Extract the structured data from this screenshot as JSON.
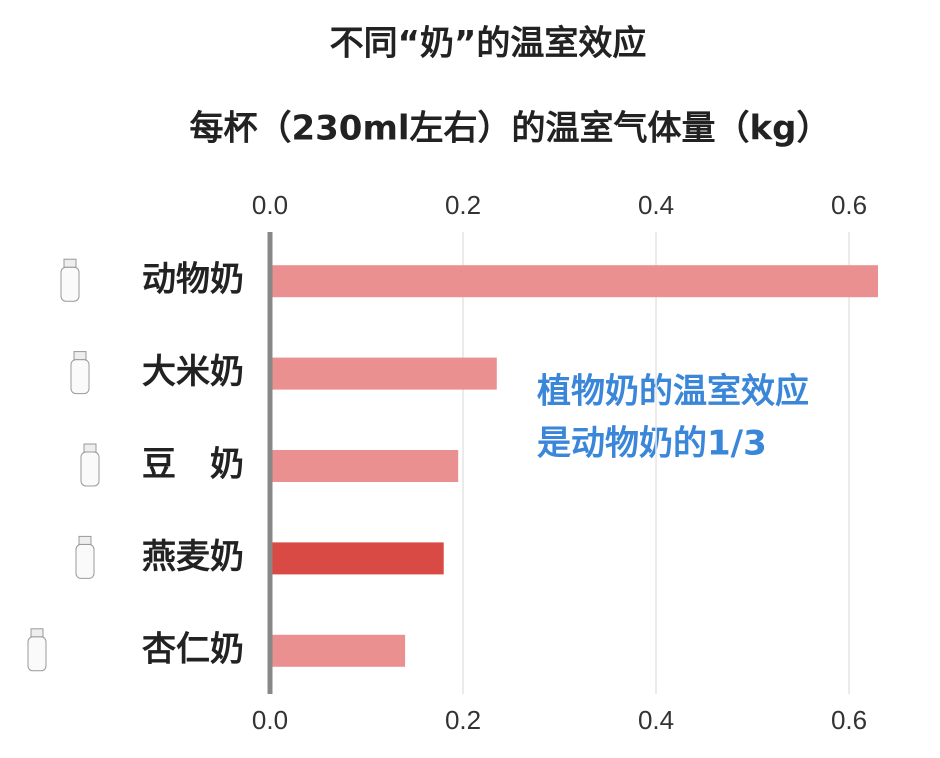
{
  "chart_data": {
    "type": "bar",
    "orientation": "horizontal",
    "title": "不同“奶”的温室效应",
    "subtitle": "每杯（230ml左右）的温室气体量（kg）",
    "categories": [
      "动物奶",
      "大米奶",
      "豆　奶",
      "燕麦奶",
      "杏仁奶"
    ],
    "values": [
      0.63,
      0.235,
      0.195,
      0.18,
      0.14
    ],
    "colors": [
      "#ea9090",
      "#ea9090",
      "#ea9090",
      "#d94a44",
      "#ea9090"
    ],
    "xlim": [
      0,
      0.63
    ],
    "xticks": [
      {
        "value": 0,
        "label": "0.0"
      },
      0.2,
      0.4,
      0.6
    ],
    "grid": true,
    "annotation": [
      "植物奶的温室效应",
      "是动物奶的1/3"
    ]
  }
}
